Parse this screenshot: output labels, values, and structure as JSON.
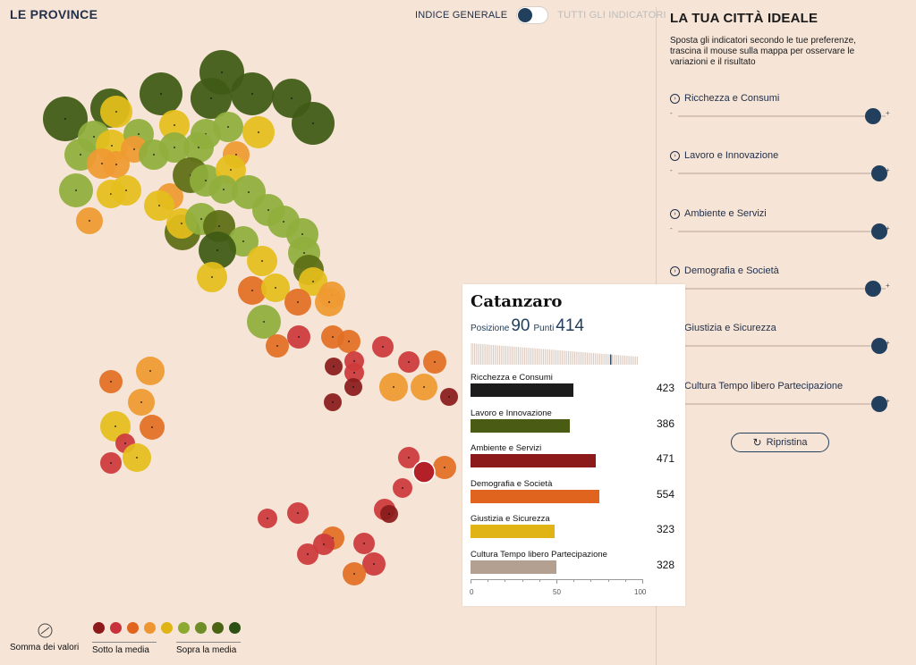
{
  "header": {
    "title": "LE PROVINCE",
    "toggle_left": "INDICE GENERALE",
    "toggle_right": "TUTTI GLI INDICATORI"
  },
  "sidebar": {
    "title": "LA TUA CITTÀ IDEALE",
    "description": "Sposta gli indicatori secondo le tue preferenze, trascina il mouse sulla mappa per osservare le variazioni e il risultato",
    "indicators": [
      {
        "label": "Ricchezza e Consumi",
        "level": 0.94
      },
      {
        "label": "Lavoro e Innovazione",
        "level": 0.97
      },
      {
        "label": "Ambiente e Servizi",
        "level": 0.97
      },
      {
        "label": "Demografia e Società",
        "level": 0.94
      },
      {
        "label": "Giustizia e Sicurezza",
        "level": 0.97
      },
      {
        "label": "Cultura Tempo libero Partecipazione",
        "level": 0.97
      }
    ],
    "minus_symbol": "-",
    "plus_symbol": "+",
    "reset_label": "Ripristina",
    "reset_icon": "refresh-icon"
  },
  "tooltip": {
    "city": "Catanzaro",
    "position_label": "Posizione",
    "position_value": "90",
    "points_label": "Punti",
    "points_value": "414",
    "categories": [
      {
        "name": "Ricchezza e Consumi",
        "value": "423",
        "percent": 60,
        "color": "#1c1c1c"
      },
      {
        "name": "Lavoro e Innovazione",
        "value": "386",
        "percent": 58,
        "color": "#4a5b14"
      },
      {
        "name": "Ambiente e Servizi",
        "value": "471",
        "percent": 73,
        "color": "#8c1a1a"
      },
      {
        "name": "Demografia e Società",
        "value": "554",
        "percent": 75,
        "color": "#e0641e"
      },
      {
        "name": "Giustizia e Sicurezza",
        "value": "323",
        "percent": 49,
        "color": "#e0b414"
      },
      {
        "name": "Cultura Tempo libero Partecipazione",
        "value": "328",
        "percent": 50,
        "color": "#b4a090"
      }
    ],
    "axis": {
      "min": "0",
      "mid": "50",
      "max": "100"
    }
  },
  "legend": {
    "sum_label": "Somma dei valori",
    "below_label": "Sotto la media",
    "above_label": "Sopra la media",
    "colors": [
      "#8c1a1a",
      "#c8323c",
      "#e0641e",
      "#ee9632",
      "#e0b414",
      "#8caa32",
      "#6e8c28",
      "#4a6414",
      "#2d5014"
    ]
  },
  "colors": {
    "accent": "#22405e",
    "background": "#f6e4d6"
  }
}
